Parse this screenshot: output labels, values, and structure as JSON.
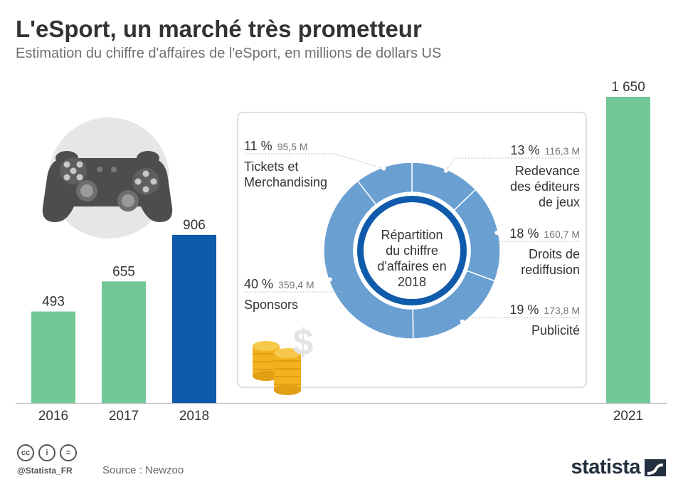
{
  "title": "L'eSport, un marché très prometteur",
  "subtitle": "Estimation du chiffre d'affaires de l'eSport, en millions de dollars US",
  "chart_data": [
    {
      "type": "bar",
      "categories": [
        "2016",
        "2017",
        "2018",
        "2021"
      ],
      "values": [
        493,
        655,
        906,
        1650
      ],
      "value_labels": [
        "493",
        "655",
        "906",
        "1 650"
      ],
      "highlight": "2018",
      "colors": {
        "default": "#72c796",
        "highlight": "#0f5aab"
      }
    },
    {
      "type": "pie",
      "title": "Répartition du chiffre d'affaires en 2018",
      "slices": [
        {
          "label": "Redevance des éditeurs de jeux",
          "lines": [
            "Redevance",
            "des éditeurs",
            "de jeux"
          ],
          "percent": 13,
          "pct_label": "13 %",
          "value": 116.3,
          "value_label": "116,3 M"
        },
        {
          "label": "Droits de rediffusion",
          "lines": [
            "Droits de",
            "rediffusion"
          ],
          "percent": 18,
          "pct_label": "18 %",
          "value": 160.7,
          "value_label": "160,7 M"
        },
        {
          "label": "Publicité",
          "lines": [
            "Publicité"
          ],
          "percent": 19,
          "pct_label": "19 %",
          "value": 173.8,
          "value_label": "173,8 M"
        },
        {
          "label": "Sponsors",
          "lines": [
            "Sponsors"
          ],
          "percent": 40,
          "pct_label": "40 %",
          "value": 359.4,
          "value_label": "359,4 M"
        },
        {
          "label": "Tickets et Merchandising",
          "lines": [
            "Tickets et",
            "Merchandising"
          ],
          "percent": 11,
          "pct_label": "11 %",
          "value": 95.5,
          "value_label": "95,5 M"
        }
      ],
      "colors": {
        "ring": "#6a9fd2",
        "inner": "#0f5aab",
        "separator": "#ffffff"
      }
    }
  ],
  "illustrations": [
    "gamepad-icon",
    "coins-icon",
    "dollar-icon"
  ],
  "footer": {
    "cc_icons": [
      "cc",
      "i",
      "="
    ],
    "handle": "@Statista_FR",
    "source": "Source : Newzoo",
    "brand": "statista"
  }
}
